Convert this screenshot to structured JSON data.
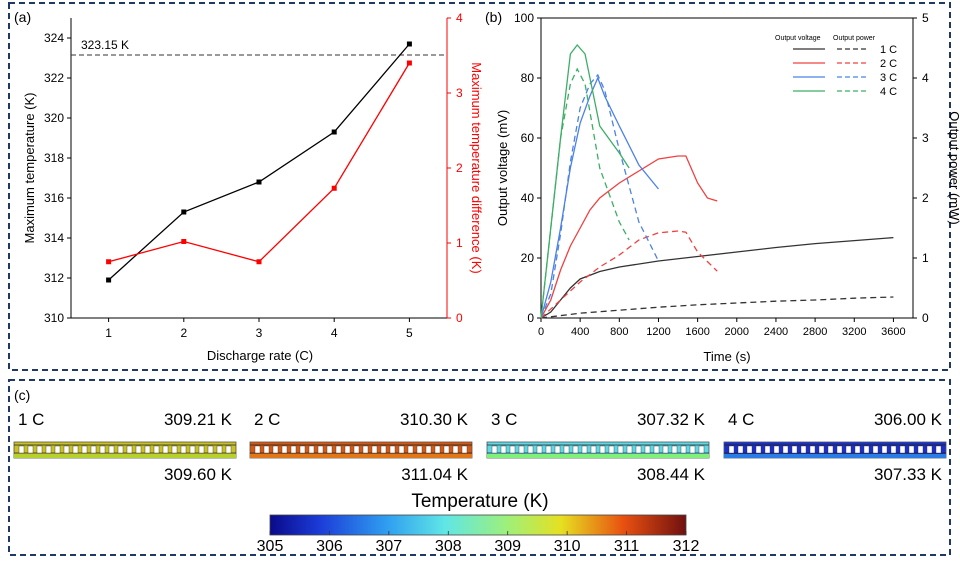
{
  "chart_data": [
    {
      "panel": "(a)",
      "type": "line",
      "xlabel": "Discharge rate (C)",
      "x": [
        1,
        2,
        3,
        4,
        5
      ],
      "xticks": [
        1,
        2,
        3,
        4,
        5
      ],
      "xlim": [
        0.5,
        5.5
      ],
      "y_left": {
        "label": "Maximum temperature (K)",
        "lim": [
          310,
          325
        ],
        "ticks": [
          310,
          312,
          314,
          316,
          318,
          320,
          322,
          324
        ]
      },
      "y_right": {
        "label": "Maximum temperature difference (K)",
        "lim": [
          0,
          4
        ],
        "ticks": [
          0,
          1,
          2,
          3,
          4
        ]
      },
      "series": [
        {
          "name": "Maximum temperature",
          "axis": "left",
          "color": "#000000",
          "values": [
            311.9,
            315.3,
            316.8,
            319.3,
            323.7
          ]
        },
        {
          "name": "Maximum temperature difference",
          "axis": "right",
          "color": "#ff0000",
          "values": [
            0.75,
            1.02,
            0.75,
            1.73,
            3.4
          ]
        }
      ],
      "reference_line": {
        "value": 323.15,
        "label": "323.15 K"
      }
    },
    {
      "panel": "(b)",
      "type": "line",
      "xlabel": "Time (s)",
      "xlim": [
        0,
        3800
      ],
      "xticks": [
        0,
        400,
        800,
        1200,
        1600,
        2000,
        2400,
        2800,
        3200,
        3600
      ],
      "y_left": {
        "label": "Output voltage (mV)",
        "lim": [
          0,
          100
        ],
        "ticks": [
          0,
          20,
          40,
          60,
          80,
          100
        ]
      },
      "y_right": {
        "label": "Output power (mW)",
        "lim": [
          0,
          5
        ],
        "ticks": [
          0,
          1,
          2,
          3,
          4,
          5
        ]
      },
      "legend": {
        "position": "top-right",
        "col_solid": "Output voltage",
        "col_dashed": "Output power"
      },
      "series": [
        {
          "name": "1 C",
          "color": "#333333",
          "voltage": {
            "x": [
              0,
              100,
              200,
              300,
              400,
              600,
              800,
              1200,
              1600,
              2000,
              2400,
              2800,
              3200,
              3600
            ],
            "y": [
              0,
              2,
              6,
              10,
              13,
              15.5,
              17,
              19,
              20.5,
              22,
              23.5,
              24.8,
              25.8,
              26.8
            ]
          },
          "power": {
            "x": [
              0,
              200,
              400,
              800,
              1200,
              1600,
              2000,
              2400,
              2800,
              3200,
              3600
            ],
            "y": [
              0,
              0.04,
              0.08,
              0.13,
              0.18,
              0.22,
              0.25,
              0.28,
              0.3,
              0.33,
              0.35
            ]
          }
        },
        {
          "name": "2 C",
          "color": "#f04040",
          "voltage": {
            "x": [
              0,
              100,
              200,
              300,
              400,
              500,
              600,
              800,
              1000,
              1200,
              1400,
              1480,
              1600,
              1700,
              1800
            ],
            "y": [
              0,
              6,
              16,
              24,
              30,
              36,
              40,
              45,
              49,
              53,
              54,
              54,
              45,
              40,
              39
            ]
          },
          "power": {
            "x": [
              0,
              200,
              400,
              600,
              800,
              1000,
              1200,
              1400,
              1480,
              1600,
              1800
            ],
            "y": [
              0,
              0.3,
              0.6,
              0.85,
              1.05,
              1.3,
              1.42,
              1.45,
              1.43,
              1.1,
              0.78
            ]
          }
        },
        {
          "name": "3 C",
          "color": "#4b82e6",
          "voltage": {
            "x": [
              0,
              100,
              200,
              300,
              400,
              500,
              580,
              650,
              800,
              1000,
              1200
            ],
            "y": [
              0,
              12,
              30,
              50,
              65,
              74,
              80,
              74,
              64,
              51,
              43
            ]
          },
          "power": {
            "x": [
              0,
              100,
              200,
              300,
              400,
              500,
              580,
              650,
              800,
              1000,
              1200
            ],
            "y": [
              0,
              0.4,
              1.4,
              2.6,
              3.5,
              3.9,
              4.05,
              3.8,
              2.8,
              1.6,
              0.95
            ]
          }
        },
        {
          "name": "4 C",
          "color": "#3cae66",
          "voltage": {
            "x": [
              0,
              100,
              200,
              300,
              370,
              450,
              600,
              800,
              900
            ],
            "y": [
              0,
              30,
              60,
              88,
              91,
              88,
              64,
              55,
              50
            ]
          },
          "power": {
            "x": [
              0,
              100,
              200,
              300,
              370,
              450,
              600,
              800,
              900
            ],
            "y": [
              0,
              1.5,
              3.0,
              3.9,
              4.15,
              3.9,
              2.5,
              1.6,
              1.3
            ]
          }
        }
      ]
    },
    {
      "panel": "(c)",
      "type": "heatmap",
      "title": "Temperature (K)",
      "colorbar": {
        "min": 305,
        "max": 312,
        "ticks": [
          305,
          306,
          307,
          308,
          309,
          310,
          311,
          312
        ]
      },
      "cases": [
        {
          "label": "1 C",
          "top_value": "309.21 K",
          "bottom_value": "309.60 K",
          "color": "#c9c224",
          "color2": "#b6d12e"
        },
        {
          "label": "2 C",
          "top_value": "310.30 K",
          "bottom_value": "311.04 K",
          "color": "#d45a14",
          "color2": "#e0781a"
        },
        {
          "label": "3 C",
          "top_value": "307.32 K",
          "bottom_value": "308.44 K",
          "color": "#5fd9e6",
          "color2": "#7ff07a"
        },
        {
          "label": "4 C",
          "top_value": "306.00 K",
          "bottom_value": "307.33 K",
          "color": "#1a2fcc",
          "color2": "#2b7de6"
        }
      ]
    }
  ]
}
